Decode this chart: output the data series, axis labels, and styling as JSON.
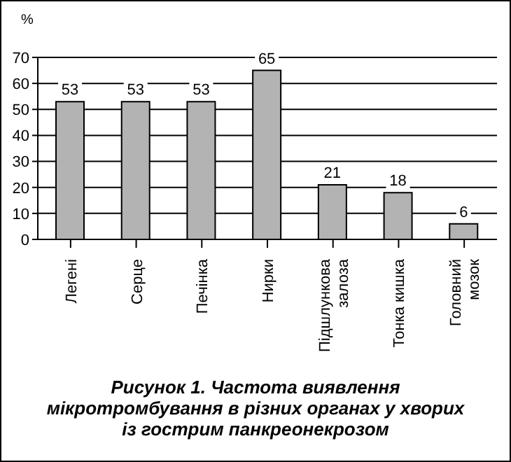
{
  "chart_data": {
    "type": "bar",
    "title": "Рисунок 1. Частота виявлення мікротромбування в різних органах у хворих із гострим панкреонекрозом",
    "ylabel": "%",
    "categories": [
      "Легені",
      "Серце",
      "Печінка",
      "Нирки",
      "Підшлункова залоза",
      "Тонка кишка",
      "Головний мозок"
    ],
    "values": [
      53,
      53,
      53,
      65,
      21,
      18,
      6
    ],
    "color": "#b3b3b3",
    "ylim": [
      0,
      70
    ],
    "yticks": [
      0,
      10,
      20,
      30,
      40,
      50,
      60,
      70
    ],
    "grid": "y",
    "data_labels": true
  }
}
